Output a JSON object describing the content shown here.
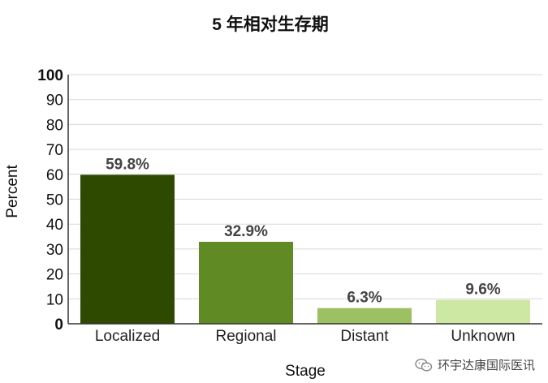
{
  "chart_data": {
    "type": "bar",
    "title": "5 年相对生存期",
    "xlabel": "Stage",
    "ylabel": "Percent",
    "ylim": [
      0,
      100
    ],
    "yticks": [
      0,
      10,
      20,
      30,
      40,
      50,
      60,
      70,
      80,
      90,
      100
    ],
    "grid": true,
    "categories": [
      "Localized",
      "Regional",
      "Distant",
      "Unknown"
    ],
    "values": [
      59.8,
      32.9,
      6.3,
      9.6
    ],
    "data_labels": [
      "59.8%",
      "32.9%",
      "6.3%",
      "9.6%"
    ],
    "colors": [
      "#2e4a00",
      "#5f8a24",
      "#9cc062",
      "#cde8a3"
    ]
  },
  "watermark": {
    "text": "环宇达康国际医讯",
    "icon": "wechat-icon"
  }
}
